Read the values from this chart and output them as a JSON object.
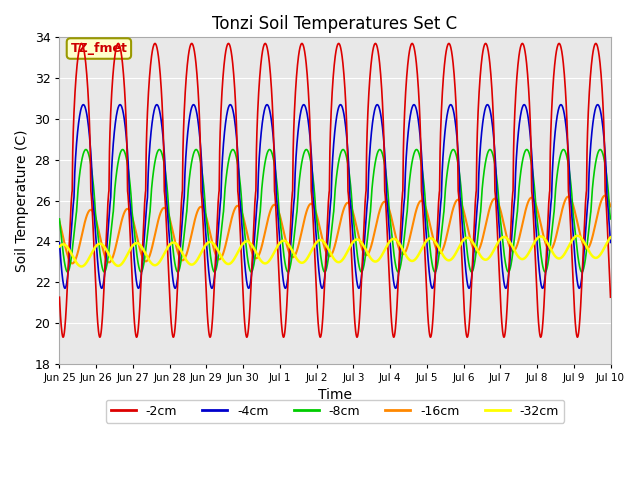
{
  "title": "Tonzi Soil Temperatures Set C",
  "xlabel": "Time",
  "ylabel": "Soil Temperature (C)",
  "ylim": [
    18,
    34
  ],
  "background_color": "#e8e8e8",
  "annotation_text": "TZ_fmet",
  "annotation_color": "#cc0000",
  "annotation_bg": "#ffffcc",
  "annotation_border": "#999900",
  "lines": {
    "-2cm": {
      "color": "#dd0000",
      "linewidth": 1.2
    },
    "-4cm": {
      "color": "#0000cc",
      "linewidth": 1.2
    },
    "-8cm": {
      "color": "#00cc00",
      "linewidth": 1.2
    },
    "-16cm": {
      "color": "#ff8800",
      "linewidth": 1.5
    },
    "-32cm": {
      "color": "#ffff00",
      "linewidth": 1.8
    }
  },
  "legend_labels": [
    "-2cm",
    "-4cm",
    "-8cm",
    "-16cm",
    "-32cm"
  ],
  "legend_colors": [
    "#dd0000",
    "#0000cc",
    "#00cc00",
    "#ff8800",
    "#ffff00"
  ],
  "xtick_labels": [
    "Jun 25",
    "Jun 26",
    "Jun 27",
    "Jun 28",
    "Jun 29",
    "Jun 30",
    "Jul 1",
    "Jul 2",
    "Jul 3",
    "Jul 4",
    "Jul 5",
    "Jul 6",
    "Jul 7",
    "Jul 8",
    "Jul 9",
    "Jul 10"
  ],
  "grid_color": "#ffffff",
  "fig_bg": "#ffffff"
}
